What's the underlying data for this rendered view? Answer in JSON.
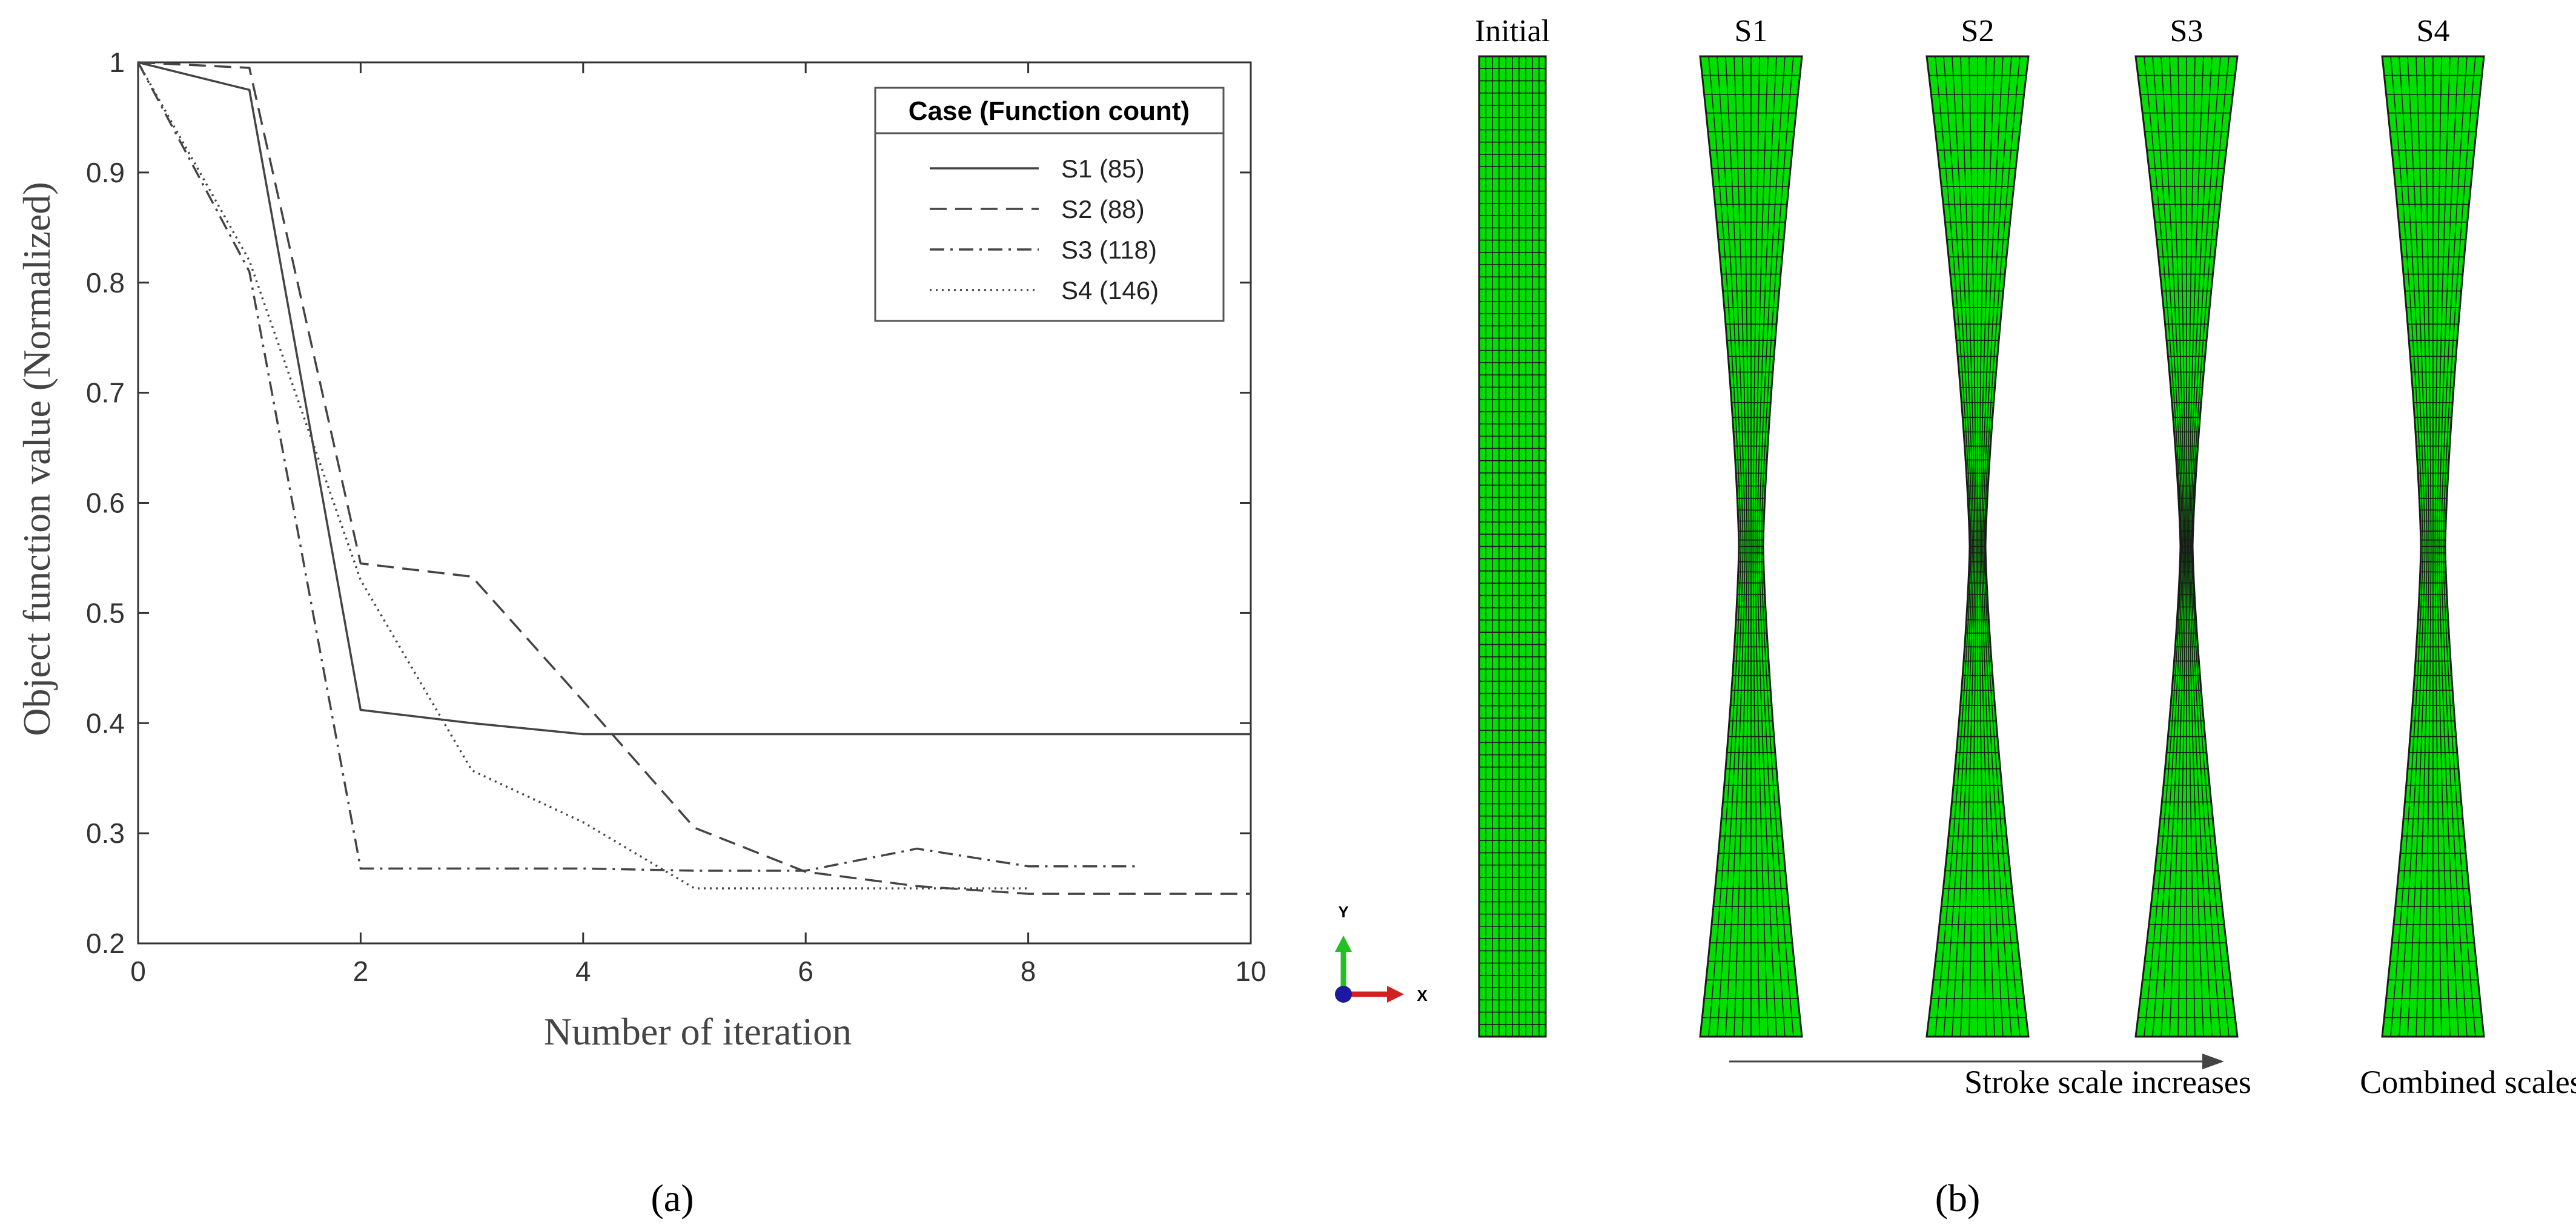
{
  "chart_data": {
    "type": "line",
    "ylabel": "Object function value (Normalized)",
    "xlabel": "Number of iteration",
    "xlim": [
      0,
      10
    ],
    "ylim": [
      0.2,
      1
    ],
    "xticks": [
      "0",
      "2",
      "4",
      "6",
      "8",
      "10"
    ],
    "yticks": [
      "0.2",
      "0.3",
      "0.4",
      "0.5",
      "0.6",
      "0.7",
      "0.8",
      "0.9",
      "1"
    ],
    "grid": false,
    "legend_title": "Case (Function count)",
    "legend_position": "top-right",
    "series": [
      {
        "name": "S1 (85)",
        "style": "solid",
        "x": [
          0,
          1,
          2,
          3,
          4,
          5,
          6,
          7,
          8,
          9,
          10
        ],
        "y": [
          1.0,
          0.975,
          0.412,
          0.4,
          0.39,
          0.39,
          0.39,
          0.39,
          0.39,
          0.39,
          0.39
        ]
      },
      {
        "name": "S2 (88)",
        "style": "dashed",
        "x": [
          0,
          1,
          2,
          3,
          4,
          5,
          6,
          7,
          8,
          9,
          10
        ],
        "y": [
          1.0,
          0.995,
          0.545,
          0.533,
          0.42,
          0.305,
          0.265,
          0.252,
          0.245,
          0.245,
          0.245
        ]
      },
      {
        "name": "S3 (118)",
        "style": "dashdot",
        "x": [
          0,
          1,
          2,
          3,
          4,
          5,
          6,
          7,
          8,
          9
        ],
        "y": [
          1.0,
          0.81,
          0.268,
          0.268,
          0.268,
          0.266,
          0.266,
          0.286,
          0.27,
          0.27
        ]
      },
      {
        "name": "S4 (146)",
        "style": "dotted",
        "x": [
          0,
          1,
          2,
          3,
          4,
          5,
          6,
          7,
          8
        ],
        "y": [
          1.0,
          0.82,
          0.53,
          0.357,
          0.31,
          0.25,
          0.25,
          0.25,
          0.25
        ]
      }
    ]
  },
  "panel_a_label": "(a)",
  "panel_b_label": "(b)",
  "axis_triad": {
    "y": "Y",
    "x": "X"
  },
  "specimens": {
    "labels": [
      "Initial",
      "S1",
      "S2",
      "S3",
      "S4"
    ],
    "stroke_caption": "Stroke scale increases",
    "combined_caption": "Combined scales",
    "mesh_color": "#00e000"
  }
}
